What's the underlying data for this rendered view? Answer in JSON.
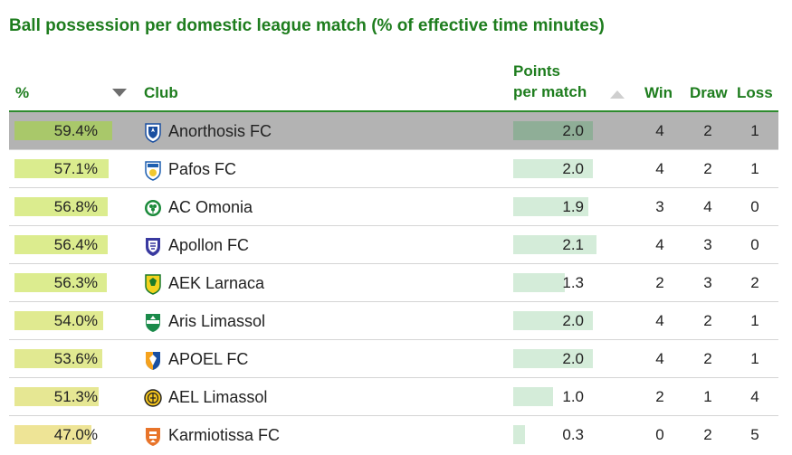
{
  "title": "Ball possession per domestic league match (% of effective time minutes)",
  "headers": {
    "pct": "%",
    "club": "Club",
    "ppm_line1": "Points",
    "ppm_line2": "per match",
    "win": "Win",
    "draw": "Draw",
    "loss": "Loss"
  },
  "sort_icons": {
    "pct": "sort-descending-icon",
    "ppm": "sort-ascending-icon"
  },
  "colors": {
    "accent": "#1e7d1e",
    "selected_row": "#b3b3b3",
    "ppm_bar": "#d4ecd9"
  },
  "chart_data": {
    "type": "table",
    "title": "Ball possession per domestic league match (% of effective time minutes)",
    "columns": [
      "%",
      "Club",
      "Points per match",
      "Win",
      "Draw",
      "Loss"
    ],
    "rows": [
      {
        "pct": 59.4,
        "pct_label": "59.4%",
        "club": "Anorthosis FC",
        "logo": "anorthosis-logo",
        "ppm": 2.0,
        "ppm_label": "2.0",
        "win": "4",
        "draw": "2",
        "loss": "1",
        "selected": true
      },
      {
        "pct": 57.1,
        "pct_label": "57.1%",
        "club": "Pafos FC",
        "logo": "pafos-logo",
        "ppm": 2.0,
        "ppm_label": "2.0",
        "win": "4",
        "draw": "2",
        "loss": "1"
      },
      {
        "pct": 56.8,
        "pct_label": "56.8%",
        "club": "AC Omonia",
        "logo": "omonia-logo",
        "ppm": 1.9,
        "ppm_label": "1.9",
        "win": "3",
        "draw": "4",
        "loss": "0"
      },
      {
        "pct": 56.4,
        "pct_label": "56.4%",
        "club": "Apollon FC",
        "logo": "apollon-logo",
        "ppm": 2.1,
        "ppm_label": "2.1",
        "win": "4",
        "draw": "3",
        "loss": "0"
      },
      {
        "pct": 56.3,
        "pct_label": "56.3%",
        "club": "AEK Larnaca",
        "logo": "aek-larnaca-logo",
        "ppm": 1.3,
        "ppm_label": "1.3",
        "win": "2",
        "draw": "3",
        "loss": "2"
      },
      {
        "pct": 54.0,
        "pct_label": "54.0%",
        "club": "Aris Limassol",
        "logo": "aris-limassol-logo",
        "ppm": 2.0,
        "ppm_label": "2.0",
        "win": "4",
        "draw": "2",
        "loss": "1"
      },
      {
        "pct": 53.6,
        "pct_label": "53.6%",
        "club": "APOEL FC",
        "logo": "apoel-logo",
        "ppm": 2.0,
        "ppm_label": "2.0",
        "win": "4",
        "draw": "2",
        "loss": "1"
      },
      {
        "pct": 51.3,
        "pct_label": "51.3%",
        "club": "AEL Limassol",
        "logo": "ael-limassol-logo",
        "ppm": 1.0,
        "ppm_label": "1.0",
        "win": "2",
        "draw": "1",
        "loss": "4"
      },
      {
        "pct": 47.0,
        "pct_label": "47.0%",
        "club": "Karmiotissa FC",
        "logo": "karmiotissa-logo",
        "ppm": 0.3,
        "ppm_label": "0.3",
        "win": "0",
        "draw": "2",
        "loss": "5"
      }
    ]
  }
}
